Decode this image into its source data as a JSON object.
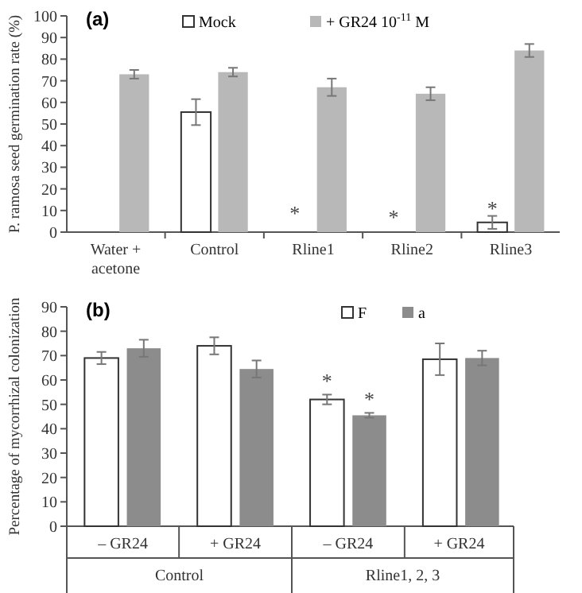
{
  "chart_data": [
    {
      "type": "bar",
      "title": "(a)",
      "ylabel": "P. ramosa seed germination rate (%)",
      "categories": [
        "Water + acetone",
        "Control",
        "Rline1",
        "Rline2",
        "Rline3"
      ],
      "ylim": [
        0,
        100
      ],
      "yticks": [
        0,
        10,
        20,
        30,
        40,
        50,
        60,
        70,
        80,
        90,
        100
      ],
      "legend": "top",
      "grid": false,
      "series": [
        {
          "name": "Mock",
          "color": "#ffffff",
          "values": [
            null,
            55.5,
            0,
            0,
            4.5
          ],
          "errors": [
            null,
            6,
            null,
            null,
            3
          ]
        },
        {
          "name": "+ GR24 10$^{-11}$ M",
          "color": "#b8b8b8",
          "values": [
            73,
            74,
            67,
            64,
            84
          ],
          "errors": [
            2,
            2,
            4,
            3,
            3
          ]
        }
      ],
      "annotations": [
        {
          "text": "*",
          "x": "Rline1",
          "y": 10
        },
        {
          "text": "*",
          "x": "Rline2",
          "y": 8
        },
        {
          "text": "*",
          "x": "Rline3",
          "y": 12
        }
      ]
    },
    {
      "type": "bar",
      "title": "(b)",
      "ylabel": "Percentage of mycorrhizal colonization",
      "categories": [
        "– GR24",
        "+ GR24",
        "– GR24",
        "+ GR24"
      ],
      "ylim": [
        0,
        90
      ],
      "yticks": [
        0,
        10,
        20,
        30,
        40,
        50,
        60,
        70,
        80,
        90
      ],
      "legend": "top",
      "grid": false,
      "series": [
        {
          "name": "F",
          "color": "#ffffff",
          "values": [
            69,
            74,
            52,
            68.5
          ],
          "errors": [
            2.5,
            3.5,
            2,
            6.5
          ]
        },
        {
          "name": "a",
          "color": "#8c8c8c",
          "values": [
            73,
            64.5,
            45.5,
            69
          ],
          "errors": [
            3.5,
            3.5,
            1,
            3
          ]
        }
      ],
      "annotations": [
        "Control",
        "Rline1, 2, 3",
        "*",
        "*"
      ]
    }
  ]
}
